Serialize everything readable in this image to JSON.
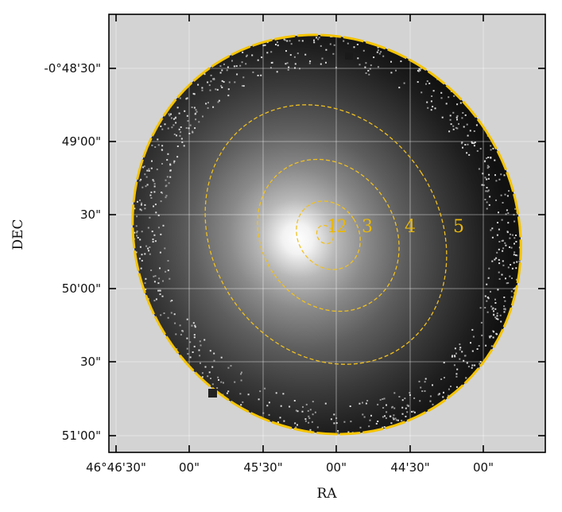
{
  "figure": {
    "xlabel": "RA",
    "ylabel": "DEC",
    "ra_ticks": [
      "46°46'30\"",
      "00\"",
      "45'30\"",
      "00\"",
      "44'30\"",
      "00\""
    ],
    "dec_ticks": [
      "-0°48'30\"",
      "49'00\"",
      "30\"",
      "50'00\"",
      "30\"",
      "51'00\""
    ],
    "region_labels": [
      "1",
      "2",
      "3",
      "4",
      "5"
    ],
    "colors": {
      "background_panel": "#d3d3d3",
      "contour": "#f0c020",
      "outer_ellipse": "#f5c400",
      "grid": "#ffffff"
    }
  }
}
